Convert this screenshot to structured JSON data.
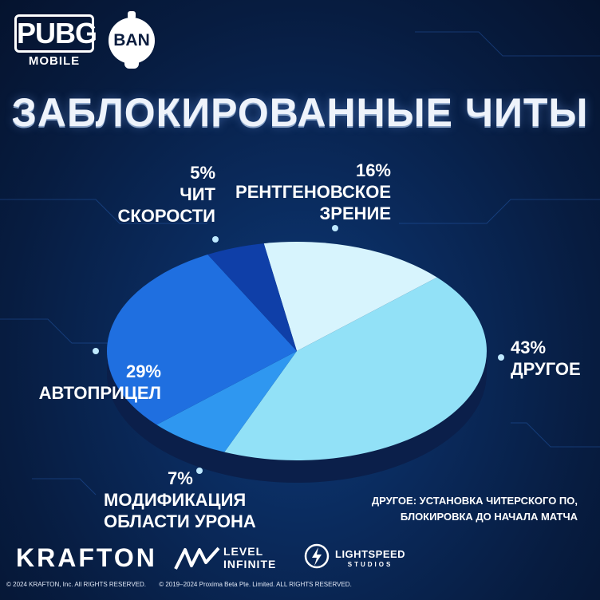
{
  "brand": {
    "game_logo": "PUBG",
    "game_logo_sub": "MOBILE",
    "ban_badge": "BAN",
    "publisher": "KRAFTON",
    "partner_1_line1": "LEVEL",
    "partner_1_line2": "INFINITE",
    "partner_2_line1": "LIGHTSPEED",
    "partner_2_line2": "STUDIOS"
  },
  "chart_data": {
    "type": "pie",
    "title": "ЗАБЛОКИРОВАННЫЕ ЧИТЫ",
    "slices": [
      {
        "label": "РЕНТГЕНОВСКОЕ ЗРЕНИЕ",
        "pct_label": "16%",
        "value": 16,
        "color": "#d7f4fd"
      },
      {
        "label": "ДРУГОЕ",
        "pct_label": "43%",
        "value": 43,
        "color": "#92e1f7"
      },
      {
        "label": "МОДИФИКАЦИЯ ОБЛАСТИ УРОНА",
        "pct_label": "7%",
        "value": 7,
        "color": "#2f97f0"
      },
      {
        "label": "АВТОПРИЦЕЛ",
        "pct_label": "29%",
        "value": 29,
        "color": "#1f6fe0"
      },
      {
        "label": "ЧИТ СКОРОСТИ",
        "pct_label": "5%",
        "value": 5,
        "color": "#0f3fa8"
      }
    ],
    "labels": {
      "xray": {
        "pct": "16%",
        "line1": "РЕНТГЕНОВСКОЕ",
        "line2": "ЗРЕНИЕ"
      },
      "other": {
        "pct": "43%",
        "line1": "ДРУГОЕ"
      },
      "damage": {
        "pct": "7%",
        "line1": "МОДИФИКАЦИЯ",
        "line2": "ОБЛАСТИ УРОНА"
      },
      "aimbot": {
        "pct": "29%",
        "line1": "АВТОПРИЦЕЛ"
      },
      "speed": {
        "pct": "5%",
        "line1": "ЧИТ",
        "line2": "СКОРОСТИ"
      }
    },
    "legend": "none"
  },
  "footnote": {
    "line1": "ДРУГОЕ: УСТАНОВКА ЧИТЕРСКОГО ПО,",
    "line2": "БЛОКИРОВКА ДО НАЧАЛА МАТЧА"
  },
  "copyright": {
    "left": "© 2024 KRAFTON, Inc. All RIGHTS RESERVED.",
    "right": "© 2019–2024 Proxima Beta Pte. Limited. ALL RIGHTS RESERVED."
  },
  "colors": {
    "background": "#0a2a5c",
    "pie_side": "#0b1f4a"
  }
}
